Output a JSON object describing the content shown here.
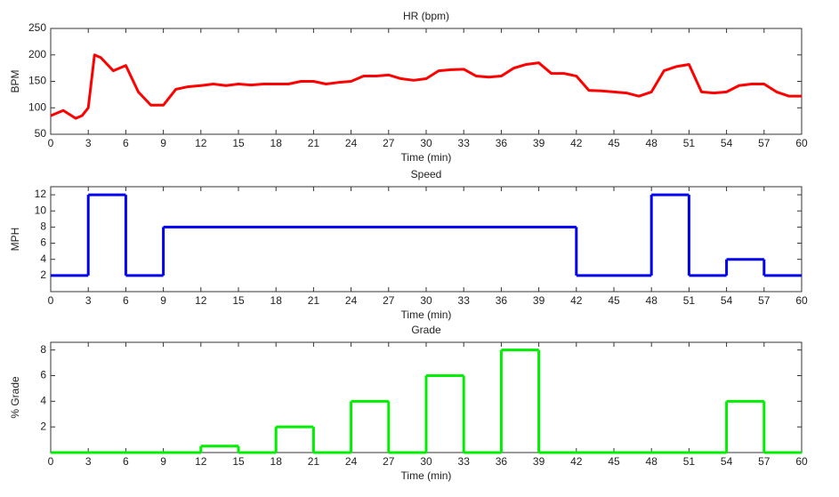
{
  "chart_data": [
    {
      "type": "line",
      "title": "HR (bpm)",
      "xlabel": "Time (min)",
      "ylabel": "BPM",
      "xlim": [
        0,
        60
      ],
      "ylim": [
        50,
        250
      ],
      "xticks": [
        0,
        3,
        6,
        9,
        12,
        15,
        18,
        21,
        24,
        27,
        30,
        33,
        36,
        39,
        42,
        45,
        48,
        51,
        54,
        57,
        60
      ],
      "yticks": [
        50,
        100,
        150,
        200,
        250
      ],
      "series": [
        {
          "color": "#ff0000",
          "x": [
            0,
            1,
            2,
            2.5,
            3,
            3.5,
            4,
            5,
            6,
            7,
            8,
            9,
            10,
            11,
            12,
            13,
            14,
            15,
            16,
            17,
            18,
            19,
            20,
            21,
            22,
            23,
            24,
            25,
            26,
            27,
            28,
            29,
            30,
            31,
            32,
            33,
            34,
            35,
            36,
            37,
            38,
            39,
            40,
            41,
            42,
            43,
            44,
            45,
            46,
            47,
            48,
            49,
            50,
            51,
            52,
            53,
            54,
            55,
            56,
            57,
            58,
            59,
            60
          ],
          "values": [
            85,
            95,
            80,
            85,
            100,
            200,
            195,
            170,
            180,
            130,
            105,
            105,
            135,
            140,
            142,
            145,
            142,
            145,
            143,
            145,
            145,
            145,
            150,
            150,
            145,
            148,
            150,
            160,
            160,
            162,
            155,
            152,
            155,
            170,
            172,
            173,
            160,
            158,
            160,
            175,
            182,
            185,
            165,
            165,
            160,
            133,
            132,
            130,
            128,
            122,
            130,
            170,
            178,
            182,
            130,
            128,
            130,
            142,
            145,
            145,
            130,
            122,
            122
          ]
        }
      ]
    },
    {
      "type": "line",
      "step": "post",
      "title": "Speed",
      "xlabel": "Time (min)",
      "ylabel": "MPH",
      "xlim": [
        0,
        60
      ],
      "ylim": [
        0,
        13
      ],
      "xticks": [
        0,
        3,
        6,
        9,
        12,
        15,
        18,
        21,
        24,
        27,
        30,
        33,
        36,
        39,
        42,
        45,
        48,
        51,
        54,
        57,
        60
      ],
      "yticks": [
        2,
        4,
        6,
        8,
        10,
        12
      ],
      "series": [
        {
          "color": "#0000ee",
          "x": [
            0,
            3,
            6,
            9,
            42,
            48,
            51,
            54,
            57,
            60
          ],
          "values": [
            2,
            12,
            2,
            8,
            2,
            12,
            2,
            4,
            2,
            2
          ]
        }
      ]
    },
    {
      "type": "line",
      "step": "post",
      "title": "Grade",
      "xlabel": "Time (min)",
      "ylabel": "% Grade",
      "xlim": [
        0,
        60
      ],
      "ylim": [
        0,
        8.6
      ],
      "xticks": [
        0,
        3,
        6,
        9,
        12,
        15,
        18,
        21,
        24,
        27,
        30,
        33,
        36,
        39,
        42,
        45,
        48,
        51,
        54,
        57,
        60
      ],
      "yticks": [
        2,
        4,
        6,
        8
      ],
      "series": [
        {
          "color": "#00ee00",
          "x": [
            0,
            12,
            15,
            18,
            21,
            24,
            27,
            30,
            33,
            36,
            39,
            54,
            57,
            60
          ],
          "values": [
            0,
            0.5,
            0,
            2,
            0,
            4,
            0,
            6,
            0,
            8,
            0,
            4,
            0,
            0
          ]
        }
      ]
    }
  ]
}
